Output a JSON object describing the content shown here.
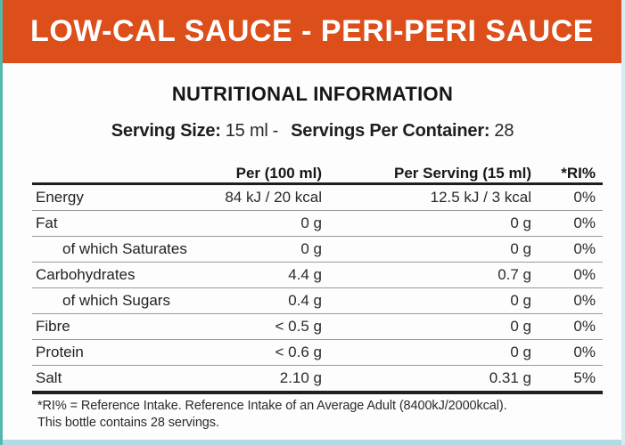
{
  "banner": {
    "title": "LOW-CAL SAUCE - PERI-PERI SAUCE",
    "bg_color": "#DC4E1A",
    "text_color": "#FFFFFF"
  },
  "header": {
    "title": "NUTRITIONAL INFORMATION"
  },
  "serving": {
    "size_label": "Serving Size:",
    "size_value": "15 ml",
    "separator": "-",
    "container_label": "Servings Per Container:",
    "container_value": "28"
  },
  "table": {
    "columns": [
      "",
      "Per (100 ml)",
      "Per Serving (15 ml)",
      "*RI%"
    ],
    "rows": [
      {
        "name": "Energy",
        "per_100ml": "84 kJ / 20 kcal",
        "per_serving": "12.5 kJ / 3 kcal",
        "ri": "0%"
      },
      {
        "name": "Fat",
        "per_100ml": "0 g",
        "per_serving": "0 g",
        "ri": "0%"
      },
      {
        "name": "of which Saturates",
        "per_100ml": "0 g",
        "per_serving": "0 g",
        "ri": "0%"
      },
      {
        "name": "Carbohydrates",
        "per_100ml": "4.4 g",
        "per_serving": "0.7 g",
        "ri": "0%"
      },
      {
        "name": "of which Sugars",
        "per_100ml": "0.4 g",
        "per_serving": "0 g",
        "ri": "0%"
      },
      {
        "name": "Fibre",
        "per_100ml": "< 0.5 g",
        "per_serving": "0 g",
        "ri": "0%"
      },
      {
        "name": "Protein",
        "per_100ml": "< 0.6 g",
        "per_serving": "0 g",
        "ri": "0%"
      },
      {
        "name": "Salt",
        "per_100ml": "2.10 g",
        "per_serving": "0.31 g",
        "ri": "5%"
      }
    ]
  },
  "footnotes": [
    "*RI% = Reference Intake. Reference Intake of an Average Adult (8400kJ/2000kcal).",
    "This bottle contains 28 servings."
  ],
  "colors": {
    "banner_orange": "#DC4E1A",
    "edge_teal": "#55B8AC",
    "edge_blue": "#B5DAE7",
    "rule_dark": "#1F1F1F",
    "rule_light": "#9A9A9A"
  }
}
